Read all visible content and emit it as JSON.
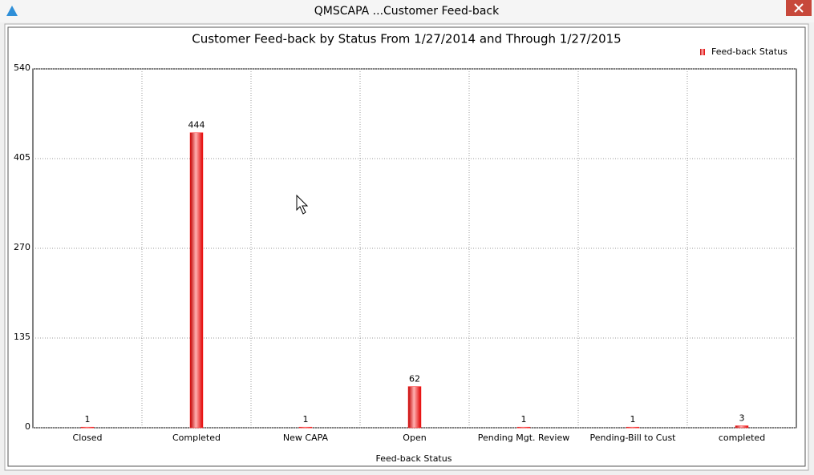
{
  "window": {
    "title": "QMSCAPA ...Customer Feed-back"
  },
  "chart_data": {
    "type": "bar",
    "title": "Customer Feed-back by Status From  1/27/2014 and Through  1/27/2015",
    "x_label": "Feed-back Status",
    "categories": [
      "Closed",
      "Completed",
      "New CAPA",
      "Open",
      "Pending Mgt. Review",
      "Pending-Bill to Cust",
      "completed"
    ],
    "series": [
      {
        "name": "Feed-back Status",
        "color": "#ff2a2a",
        "values": [
          1,
          444,
          1,
          62,
          1,
          1,
          3
        ]
      }
    ],
    "ylim": [
      0,
      540
    ],
    "yticks": [
      0,
      135,
      270,
      405,
      540
    ],
    "grid": true,
    "legend": "top-right"
  }
}
